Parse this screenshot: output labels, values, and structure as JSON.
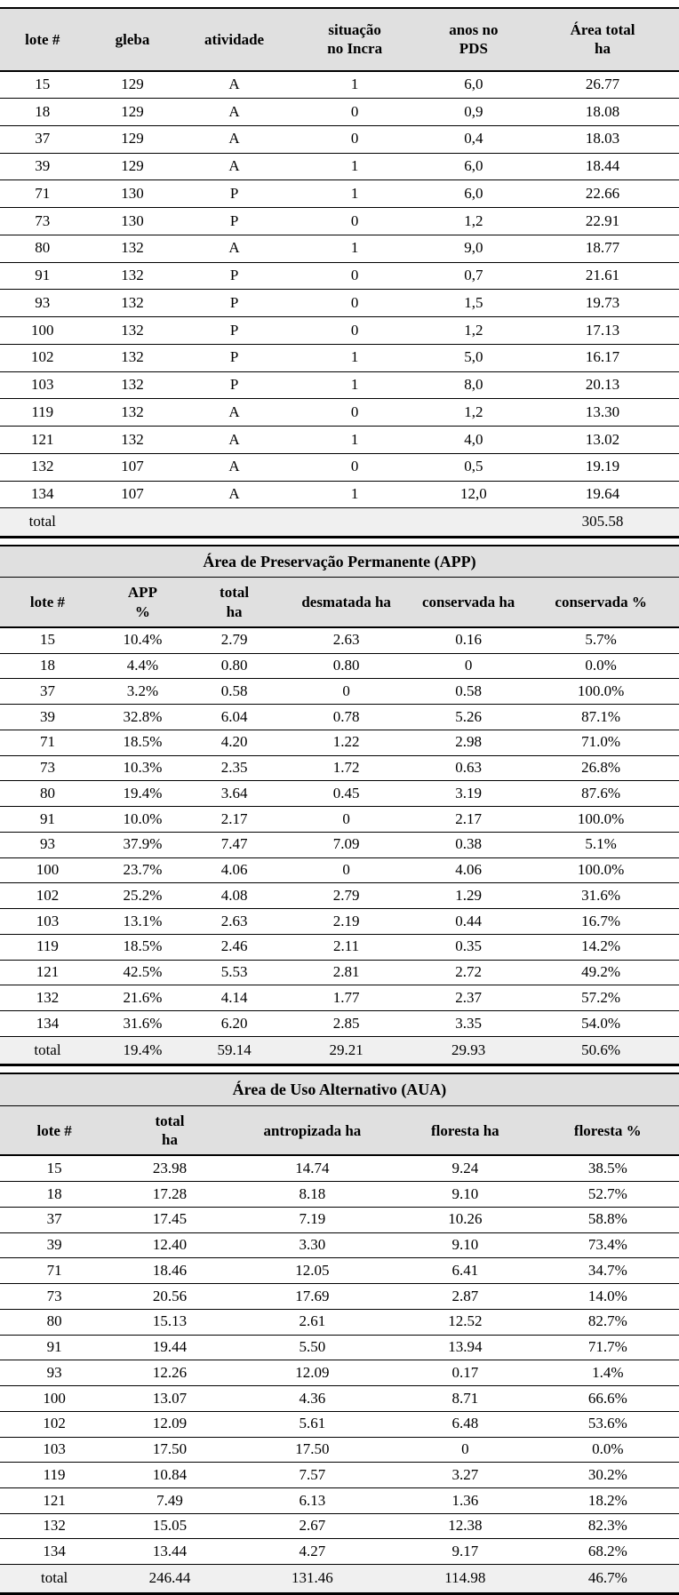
{
  "colors": {
    "header_bg": "#e0e0e0",
    "total_row_bg": "#f0f0f0",
    "border": "#000000",
    "page_bg": "#ffffff"
  },
  "table1": {
    "columns": [
      "lote #",
      "gleba",
      "atividade",
      "situação\nno Incra",
      "anos no\nPDS",
      "Área total\nha"
    ],
    "col_widths": [
      "12.5%",
      "14%",
      "16%",
      "19.5%",
      "15.5%",
      "22.5%"
    ],
    "rows": [
      [
        "15",
        "129",
        "A",
        "1",
        "6,0",
        "26.77"
      ],
      [
        "18",
        "129",
        "A",
        "0",
        "0,9",
        "18.08"
      ],
      [
        "37",
        "129",
        "A",
        "0",
        "0,4",
        "18.03"
      ],
      [
        "39",
        "129",
        "A",
        "1",
        "6,0",
        "18.44"
      ],
      [
        "71",
        "130",
        "P",
        "1",
        "6,0",
        "22.66"
      ],
      [
        "73",
        "130",
        "P",
        "0",
        "1,2",
        "22.91"
      ],
      [
        "80",
        "132",
        "A",
        "1",
        "9,0",
        "18.77"
      ],
      [
        "91",
        "132",
        "P",
        "0",
        "0,7",
        "21.61"
      ],
      [
        "93",
        "132",
        "P",
        "0",
        "1,5",
        "19.73"
      ],
      [
        "100",
        "132",
        "P",
        "0",
        "1,2",
        "17.13"
      ],
      [
        "102",
        "132",
        "P",
        "1",
        "5,0",
        "16.17"
      ],
      [
        "103",
        "132",
        "P",
        "1",
        "8,0",
        "20.13"
      ],
      [
        "119",
        "132",
        "A",
        "0",
        "1,2",
        "13.30"
      ],
      [
        "121",
        "132",
        "A",
        "1",
        "4,0",
        "13.02"
      ],
      [
        "132",
        "107",
        "A",
        "0",
        "0,5",
        "19.19"
      ],
      [
        "134",
        "107",
        "A",
        "1",
        "12,0",
        "19.64"
      ]
    ],
    "total": [
      "total",
      "",
      "",
      "",
      "",
      "305.58"
    ]
  },
  "table2": {
    "title": "Área de Preservação Permanente (APP)",
    "columns": [
      "lote #",
      "APP\n%",
      "total\nha",
      "desmatada ha",
      "conservada ha",
      "conservada %"
    ],
    "col_widths": [
      "14%",
      "14%",
      "13%",
      "20%",
      "16%",
      "23%"
    ],
    "rows": [
      [
        "15",
        "10.4%",
        "2.79",
        "2.63",
        "0.16",
        "5.7%"
      ],
      [
        "18",
        "4.4%",
        "0.80",
        "0.80",
        "0",
        "0.0%"
      ],
      [
        "37",
        "3.2%",
        "0.58",
        "0",
        "0.58",
        "100.0%"
      ],
      [
        "39",
        "32.8%",
        "6.04",
        "0.78",
        "5.26",
        "87.1%"
      ],
      [
        "71",
        "18.5%",
        "4.20",
        "1.22",
        "2.98",
        "71.0%"
      ],
      [
        "73",
        "10.3%",
        "2.35",
        "1.72",
        "0.63",
        "26.8%"
      ],
      [
        "80",
        "19.4%",
        "3.64",
        "0.45",
        "3.19",
        "87.6%"
      ],
      [
        "91",
        "10.0%",
        "2.17",
        "0",
        "2.17",
        "100.0%"
      ],
      [
        "93",
        "37.9%",
        "7.47",
        "7.09",
        "0.38",
        "5.1%"
      ],
      [
        "100",
        "23.7%",
        "4.06",
        "0",
        "4.06",
        "100.0%"
      ],
      [
        "102",
        "25.2%",
        "4.08",
        "2.79",
        "1.29",
        "31.6%"
      ],
      [
        "103",
        "13.1%",
        "2.63",
        "2.19",
        "0.44",
        "16.7%"
      ],
      [
        "119",
        "18.5%",
        "2.46",
        "2.11",
        "0.35",
        "14.2%"
      ],
      [
        "121",
        "42.5%",
        "5.53",
        "2.81",
        "2.72",
        "49.2%"
      ],
      [
        "132",
        "21.6%",
        "4.14",
        "1.77",
        "2.37",
        "57.2%"
      ],
      [
        "134",
        "31.6%",
        "6.20",
        "2.85",
        "3.35",
        "54.0%"
      ]
    ],
    "total": [
      "total",
      "19.4%",
      "59.14",
      "29.21",
      "29.93",
      "50.6%"
    ]
  },
  "table3": {
    "title": "Área de Uso Alternativo (AUA)",
    "columns": [
      "lote #",
      "total\nha",
      "antropizada ha",
      "floresta ha",
      "floresta %"
    ],
    "col_widths": [
      "16%",
      "18%",
      "24%",
      "21%",
      "21%"
    ],
    "rows": [
      [
        "15",
        "23.98",
        "14.74",
        "9.24",
        "38.5%"
      ],
      [
        "18",
        "17.28",
        "8.18",
        "9.10",
        "52.7%"
      ],
      [
        "37",
        "17.45",
        "7.19",
        "10.26",
        "58.8%"
      ],
      [
        "39",
        "12.40",
        "3.30",
        "9.10",
        "73.4%"
      ],
      [
        "71",
        "18.46",
        "12.05",
        "6.41",
        "34.7%"
      ],
      [
        "73",
        "20.56",
        "17.69",
        "2.87",
        "14.0%"
      ],
      [
        "80",
        "15.13",
        "2.61",
        "12.52",
        "82.7%"
      ],
      [
        "91",
        "19.44",
        "5.50",
        "13.94",
        "71.7%"
      ],
      [
        "93",
        "12.26",
        "12.09",
        "0.17",
        "1.4%"
      ],
      [
        "100",
        "13.07",
        "4.36",
        "8.71",
        "66.6%"
      ],
      [
        "102",
        "12.09",
        "5.61",
        "6.48",
        "53.6%"
      ],
      [
        "103",
        "17.50",
        "17.50",
        "0",
        "0.0%"
      ],
      [
        "119",
        "10.84",
        "7.57",
        "3.27",
        "30.2%"
      ],
      [
        "121",
        "7.49",
        "6.13",
        "1.36",
        "18.2%"
      ],
      [
        "132",
        "15.05",
        "2.67",
        "12.38",
        "82.3%"
      ],
      [
        "134",
        "13.44",
        "4.27",
        "9.17",
        "68.2%"
      ]
    ],
    "total": [
      "total",
      "246.44",
      "131.46",
      "114.98",
      "46.7%"
    ]
  }
}
